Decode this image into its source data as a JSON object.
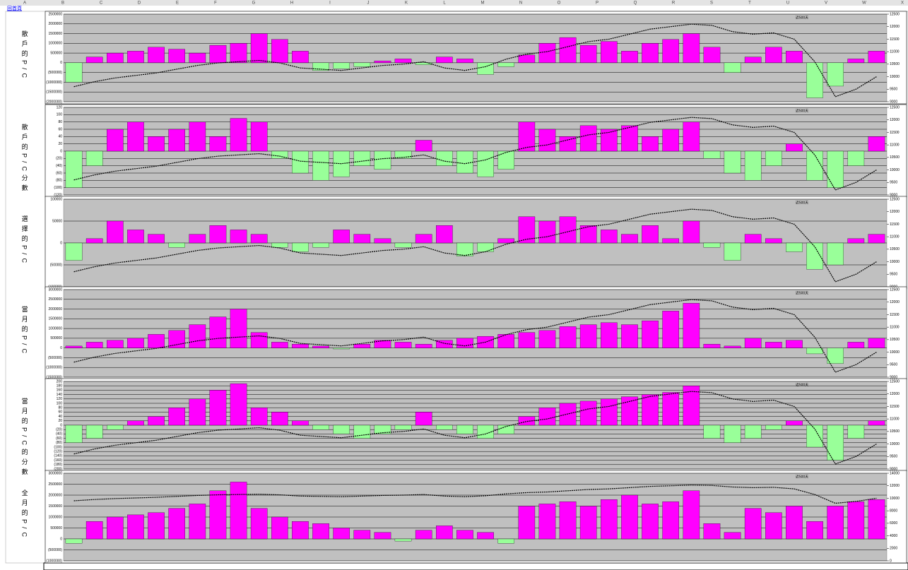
{
  "sheet": {
    "columns": [
      "A",
      "B",
      "C",
      "D",
      "E",
      "F",
      "G",
      "H",
      "I",
      "J",
      "K",
      "L",
      "M",
      "N",
      "O",
      "P",
      "Q",
      "R",
      "S",
      "T",
      "U",
      "V",
      "W",
      "X"
    ],
    "home_link": "回首頁"
  },
  "chart_data": [
    {
      "type": "bar",
      "row_label": "散戶的P/C",
      "annotation": "近500天",
      "grid": true,
      "ylim": [
        -2000000,
        2500000
      ],
      "yticks": [
        {
          "value": -2000000,
          "label": "(2000000)"
        },
        {
          "value": -1500000,
          "label": "(1500000)"
        },
        {
          "value": -1000000,
          "label": "(1000000)"
        },
        {
          "value": -500000,
          "label": "(500000)"
        },
        0,
        500000,
        1000000,
        1500000,
        2000000,
        2500000
      ],
      "y2lim": [
        9000,
        12500
      ],
      "y2ticks": [
        9000,
        9500,
        10000,
        10500,
        11000,
        11500,
        12000,
        12500
      ],
      "series": [
        {
          "type": "bar",
          "color": "#ff00ff",
          "negative_color": "#99ff99",
          "values": [
            -1000000,
            300000,
            500000,
            600000,
            800000,
            700000,
            500000,
            900000,
            1000000,
            1500000,
            1200000,
            600000,
            -400000,
            -300000,
            -200000,
            100000,
            200000,
            -100000,
            300000,
            200000,
            -600000,
            -200000,
            400000,
            1000000,
            1300000,
            900000,
            1100000,
            600000,
            1000000,
            1200000,
            1500000,
            800000,
            -500000,
            300000,
            800000,
            600000,
            -1800000,
            -1200000,
            200000,
            600000
          ]
        },
        {
          "type": "line",
          "axis": "y2",
          "color": "#000000",
          "values": [
            9600,
            9800,
            9950,
            10050,
            10150,
            10300,
            10450,
            10550,
            10600,
            10650,
            10550,
            10350,
            10300,
            10250,
            10350,
            10450,
            10500,
            10600,
            10350,
            10250,
            10400,
            10700,
            10900,
            11000,
            11200,
            11400,
            11500,
            11700,
            11900,
            12000,
            12100,
            12050,
            11800,
            11700,
            11750,
            11500,
            10600,
            9200,
            9500,
            10000
          ]
        }
      ]
    },
    {
      "type": "bar",
      "row_label": "散戶的P/C分數",
      "annotation": "近500天",
      "grid": true,
      "ylim": [
        -120,
        120
      ],
      "yticks": [
        {
          "value": -120,
          "label": "(120)"
        },
        {
          "value": -100,
          "label": "(100)"
        },
        {
          "value": -80,
          "label": "(80)"
        },
        {
          "value": -60,
          "label": "(60)"
        },
        {
          "value": -40,
          "label": "(40)"
        },
        {
          "value": -20,
          "label": "(20)"
        },
        0,
        20,
        40,
        60,
        80,
        100,
        120
      ],
      "y2lim": [
        9000,
        12500
      ],
      "y2ticks": [
        9000,
        9500,
        10000,
        10500,
        11000,
        11500,
        12000,
        12500
      ],
      "series": [
        {
          "type": "bar",
          "color": "#ff00ff",
          "negative_color": "#99ff99",
          "values": [
            -100,
            -40,
            60,
            80,
            40,
            60,
            80,
            40,
            90,
            80,
            -20,
            -60,
            -80,
            -70,
            -40,
            -50,
            -20,
            30,
            -40,
            -60,
            -70,
            -50,
            80,
            60,
            40,
            70,
            60,
            70,
            40,
            60,
            80,
            -20,
            -60,
            -80,
            -40,
            20,
            -80,
            -100,
            -40,
            40
          ]
        },
        {
          "type": "line",
          "axis": "y2",
          "color": "#000000",
          "values": [
            9600,
            9800,
            9950,
            10050,
            10150,
            10300,
            10450,
            10550,
            10600,
            10650,
            10550,
            10350,
            10300,
            10250,
            10350,
            10450,
            10500,
            10600,
            10350,
            10250,
            10400,
            10700,
            10900,
            11000,
            11200,
            11400,
            11500,
            11700,
            11900,
            12000,
            12100,
            12050,
            11800,
            11700,
            11750,
            11500,
            10600,
            9200,
            9500,
            10000
          ]
        }
      ]
    },
    {
      "type": "bar",
      "row_label": "選擇的P/C",
      "annotation": "近500天",
      "grid": true,
      "ylim": [
        -100000,
        100000
      ],
      "yticks": [
        {
          "value": -100000,
          "label": "(100000)"
        },
        {
          "value": -50000,
          "label": "(50000)"
        },
        0,
        50000,
        100000
      ],
      "y2lim": [
        9000,
        12500
      ],
      "y2ticks": [
        9000,
        9500,
        10000,
        10500,
        11000,
        11500,
        12000,
        12500
      ],
      "series": [
        {
          "type": "bar",
          "color": "#ff00ff",
          "negative_color": "#99ff99",
          "values": [
            -40000,
            10000,
            50000,
            30000,
            20000,
            -10000,
            20000,
            40000,
            30000,
            20000,
            -10000,
            -20000,
            -10000,
            30000,
            20000,
            10000,
            -10000,
            20000,
            40000,
            -30000,
            -20000,
            10000,
            60000,
            50000,
            60000,
            40000,
            30000,
            20000,
            40000,
            10000,
            50000,
            -10000,
            -40000,
            20000,
            10000,
            -20000,
            -60000,
            -50000,
            10000,
            20000
          ]
        },
        {
          "type": "line",
          "axis": "y2",
          "color": "#000000",
          "values": [
            9600,
            9800,
            9950,
            10050,
            10150,
            10300,
            10450,
            10550,
            10600,
            10650,
            10550,
            10350,
            10300,
            10250,
            10350,
            10450,
            10500,
            10600,
            10350,
            10250,
            10400,
            10700,
            10900,
            11000,
            11200,
            11400,
            11500,
            11700,
            11900,
            12000,
            12100,
            12050,
            11800,
            11700,
            11750,
            11500,
            10600,
            9200,
            9500,
            10000
          ]
        }
      ]
    },
    {
      "type": "bar",
      "row_label": "當月的P/C",
      "annotation": "近500天",
      "grid": true,
      "ylim": [
        -1500000,
        3000000
      ],
      "yticks": [
        {
          "value": -1500000,
          "label": "(1500000)"
        },
        {
          "value": -1000000,
          "label": "(1000000)"
        },
        {
          "value": -500000,
          "label": "(500000)"
        },
        0,
        500000,
        1000000,
        1500000,
        2000000,
        2500000,
        3000000
      ],
      "y2lim": [
        9000,
        12500
      ],
      "y2ticks": [
        9000,
        9500,
        10000,
        10500,
        11000,
        11500,
        12000,
        12500
      ],
      "series": [
        {
          "type": "bar",
          "color": "#ff00ff",
          "negative_color": "#99ff99",
          "values": [
            100000,
            300000,
            400000,
            500000,
            700000,
            900000,
            1200000,
            1600000,
            2000000,
            800000,
            300000,
            200000,
            100000,
            -50000,
            200000,
            400000,
            300000,
            200000,
            400000,
            500000,
            600000,
            700000,
            800000,
            900000,
            1100000,
            1200000,
            1300000,
            1200000,
            1400000,
            1900000,
            2300000,
            200000,
            100000,
            500000,
            300000,
            400000,
            -300000,
            -800000,
            300000,
            500000
          ]
        },
        {
          "type": "line",
          "axis": "y2",
          "color": "#000000",
          "values": [
            9600,
            9800,
            9950,
            10050,
            10150,
            10300,
            10450,
            10550,
            10600,
            10650,
            10550,
            10350,
            10300,
            10250,
            10350,
            10450,
            10500,
            10600,
            10350,
            10250,
            10400,
            10700,
            10900,
            11000,
            11200,
            11400,
            11500,
            11700,
            11900,
            12000,
            12100,
            12050,
            11800,
            11700,
            11750,
            11500,
            10600,
            9200,
            9500,
            10000
          ]
        }
      ]
    },
    {
      "type": "bar",
      "row_label": "當月的P/C的分數",
      "annotation": "近500天",
      "grid": true,
      "ylim": [
        -200,
        200
      ],
      "yticks": [
        {
          "value": -200,
          "label": "(200)"
        },
        {
          "value": -180,
          "label": "(180)"
        },
        {
          "value": -160,
          "label": "(160)"
        },
        {
          "value": -140,
          "label": "(140)"
        },
        {
          "value": -120,
          "label": "(120)"
        },
        {
          "value": -100,
          "label": "(100)"
        },
        {
          "value": -80,
          "label": "(80)"
        },
        {
          "value": -60,
          "label": "(60)"
        },
        {
          "value": -40,
          "label": "(40)"
        },
        {
          "value": -20,
          "label": "(20)"
        },
        0,
        20,
        40,
        60,
        80,
        100,
        120,
        140,
        160,
        180,
        200
      ],
      "y2lim": [
        9000,
        12500
      ],
      "y2ticks": [
        9000,
        9500,
        10000,
        10500,
        11000,
        11500,
        12000,
        12500
      ],
      "series": [
        {
          "type": "bar",
          "color": "#ff00ff",
          "negative_color": "#99ff99",
          "values": [
            -80,
            -60,
            -20,
            20,
            40,
            80,
            120,
            160,
            190,
            80,
            60,
            20,
            -20,
            -40,
            -60,
            -40,
            -20,
            60,
            -20,
            -40,
            -60,
            -40,
            40,
            80,
            100,
            110,
            120,
            130,
            140,
            150,
            180,
            -60,
            -80,
            -60,
            -20,
            20,
            -100,
            -160,
            -60,
            20
          ]
        },
        {
          "type": "line",
          "axis": "y2",
          "color": "#000000",
          "values": [
            9600,
            9800,
            9950,
            10050,
            10150,
            10300,
            10450,
            10550,
            10600,
            10650,
            10550,
            10350,
            10300,
            10250,
            10350,
            10450,
            10500,
            10600,
            10350,
            10250,
            10400,
            10700,
            10900,
            11000,
            11200,
            11400,
            11500,
            11700,
            11900,
            12000,
            12100,
            12050,
            11800,
            11700,
            11750,
            11500,
            10600,
            9200,
            9500,
            10000
          ]
        }
      ]
    },
    {
      "type": "bar",
      "row_label": "全月的P/C",
      "annotation": "近500天",
      "grid": true,
      "ylim": [
        -1000000,
        3000000
      ],
      "yticks": [
        {
          "value": -1000000,
          "label": "(1000000)"
        },
        {
          "value": -500000,
          "label": "(500000)"
        },
        0,
        500000,
        1000000,
        1500000,
        2000000,
        2500000,
        3000000
      ],
      "y2lim": [
        0,
        14000
      ],
      "y2ticks": [
        0,
        2000,
        4000,
        6000,
        8000,
        10000,
        12000,
        14000
      ],
      "series": [
        {
          "type": "bar",
          "color": "#ff00ff",
          "negative_color": "#99ff99",
          "values": [
            -200000,
            800000,
            1000000,
            1100000,
            1200000,
            1400000,
            1600000,
            2200000,
            2600000,
            1400000,
            1000000,
            800000,
            700000,
            500000,
            400000,
            300000,
            -100000,
            400000,
            600000,
            400000,
            300000,
            -200000,
            1500000,
            1600000,
            1700000,
            1500000,
            1800000,
            2000000,
            1600000,
            1700000,
            2200000,
            700000,
            300000,
            1400000,
            1200000,
            1500000,
            800000,
            1500000,
            1700000,
            1800000
          ]
        },
        {
          "type": "line",
          "axis": "y2",
          "color": "#000000",
          "values": [
            9600,
            9800,
            9950,
            10050,
            10150,
            10300,
            10450,
            10550,
            10600,
            10650,
            10550,
            10350,
            10300,
            10250,
            10350,
            10450,
            10500,
            10600,
            10350,
            10250,
            10400,
            10700,
            10900,
            11000,
            11200,
            11400,
            11500,
            11700,
            11900,
            12000,
            12100,
            12050,
            11800,
            11700,
            11750,
            11500,
            10600,
            9200,
            9500,
            10000
          ]
        }
      ]
    }
  ]
}
